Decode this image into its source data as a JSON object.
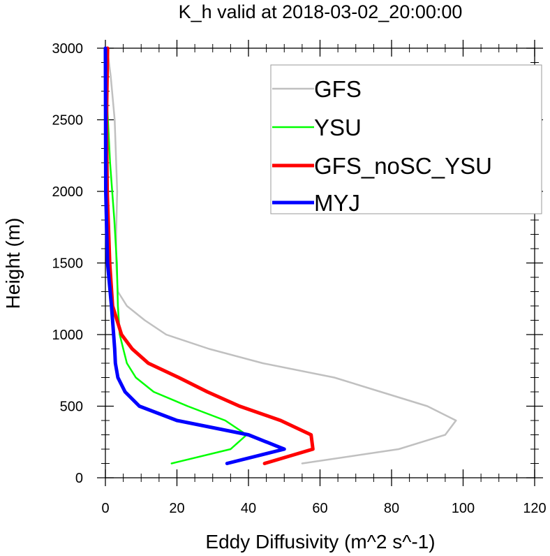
{
  "chart_data": {
    "type": "line",
    "title": "K_h valid at 2018-03-02_20:00:00",
    "xlabel": "Eddy Diffusivity (m^2 s^-1)",
    "ylabel": "Height (m)",
    "xlim": [
      0,
      120
    ],
    "ylim": [
      0,
      3000
    ],
    "xticks": [
      0,
      20,
      40,
      60,
      80,
      100,
      120
    ],
    "yticks": [
      0,
      500,
      1000,
      1500,
      2000,
      2500,
      3000
    ],
    "grid": false,
    "legend_position": "top-right",
    "series": [
      {
        "name": "GFS",
        "color": "#c0c0c0",
        "width": "thin",
        "points": [
          [
            55,
            100
          ],
          [
            82,
            200
          ],
          [
            95,
            300
          ],
          [
            98,
            400
          ],
          [
            90,
            500
          ],
          [
            77,
            600
          ],
          [
            64,
            700
          ],
          [
            44,
            800
          ],
          [
            29,
            900
          ],
          [
            17,
            1000
          ],
          [
            11,
            1100
          ],
          [
            6,
            1200
          ],
          [
            3.5,
            1300
          ],
          [
            3,
            1500
          ],
          [
            3,
            1700
          ],
          [
            3.3,
            2000
          ],
          [
            2.6,
            2500
          ],
          [
            1.5,
            2800
          ],
          [
            0.5,
            3000
          ]
        ]
      },
      {
        "name": "YSU",
        "color": "#00ff00",
        "width": "thin",
        "points": [
          [
            18.5,
            100
          ],
          [
            35,
            200
          ],
          [
            39.5,
            300
          ],
          [
            33.5,
            400
          ],
          [
            23,
            500
          ],
          [
            13.5,
            600
          ],
          [
            8.5,
            700
          ],
          [
            6,
            800
          ],
          [
            5,
            900
          ],
          [
            4,
            1000
          ],
          [
            3.5,
            1200
          ],
          [
            3.2,
            1500
          ],
          [
            2.5,
            1800
          ],
          [
            1.3,
            2200
          ],
          [
            0.5,
            2600
          ],
          [
            0.1,
            3000
          ]
        ]
      },
      {
        "name": "GFS_noSC_YSU",
        "color": "#ff0000",
        "width": "thick",
        "points": [
          [
            44.5,
            100
          ],
          [
            58,
            200
          ],
          [
            57.5,
            300
          ],
          [
            49,
            400
          ],
          [
            37.5,
            500
          ],
          [
            28.5,
            600
          ],
          [
            20.5,
            700
          ],
          [
            12,
            800
          ],
          [
            7.5,
            900
          ],
          [
            4.5,
            1000
          ],
          [
            2,
            1200
          ],
          [
            1.2,
            1500
          ],
          [
            0.5,
            2000
          ],
          [
            0.3,
            2500
          ],
          [
            0.6,
            3000
          ]
        ]
      },
      {
        "name": "MYJ",
        "color": "#0000ff",
        "width": "thick",
        "points": [
          [
            34,
            100
          ],
          [
            50,
            200
          ],
          [
            40,
            300
          ],
          [
            20,
            400
          ],
          [
            9.5,
            500
          ],
          [
            5.5,
            600
          ],
          [
            3.5,
            700
          ],
          [
            2.8,
            800
          ],
          [
            2.6,
            900
          ],
          [
            2.3,
            1000
          ],
          [
            1.7,
            1200
          ],
          [
            0.6,
            1500
          ],
          [
            0.1,
            2000
          ],
          [
            0,
            3000
          ]
        ]
      }
    ]
  }
}
